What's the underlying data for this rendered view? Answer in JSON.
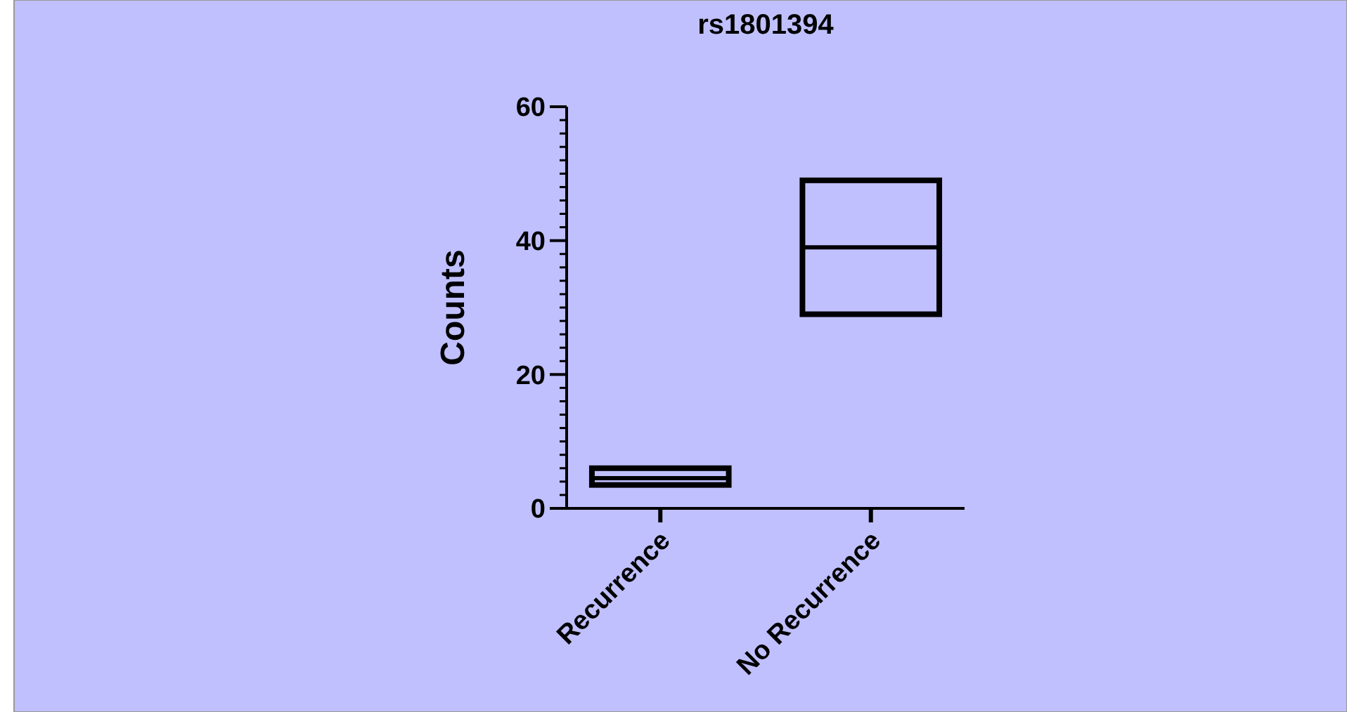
{
  "chart_data": {
    "type": "box",
    "title": "rs1801394",
    "ylabel": "Counts",
    "categories": [
      "Recurrence",
      "No Recurrence"
    ],
    "boxes": [
      {
        "low": 3.5,
        "q1": 3.5,
        "median": 4.5,
        "q3": 6,
        "high": 6
      },
      {
        "low": 29,
        "q1": 29,
        "median": 39,
        "q3": 49,
        "high": 49
      }
    ],
    "ylim": [
      0,
      60
    ],
    "yticks": [
      0,
      20,
      40,
      60
    ],
    "grid": false
  }
}
